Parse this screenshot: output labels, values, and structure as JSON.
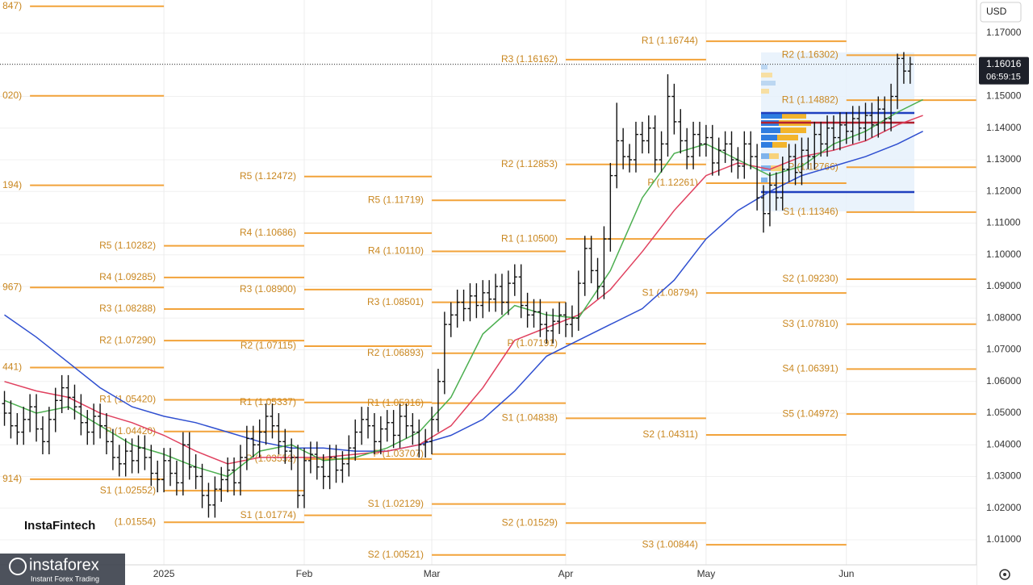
{
  "chart_data": {
    "type": "ohlc",
    "currency": "USD",
    "last_price": 1.16016,
    "countdown": "06:59:15",
    "grid": true,
    "bar_color": "#111111",
    "pivot_color": "#f2a33a",
    "pivot_label_color": "#c98720",
    "price_line_color": "#333333",
    "xlim": [
      -25.7,
      127.4
    ],
    "ylim": [
      1.0021,
      1.18045
    ],
    "xticks": [
      {
        "value": 0,
        "label": "2025"
      },
      {
        "value": 22,
        "label": "Feb"
      },
      {
        "value": 42,
        "label": "Mar"
      },
      {
        "value": 63,
        "label": "Apr"
      },
      {
        "value": 85,
        "label": "May"
      },
      {
        "value": 107,
        "label": "Jun"
      }
    ],
    "yticks": [
      {
        "value": 1.01,
        "label": "1.01000"
      },
      {
        "value": 1.02,
        "label": "1.02000"
      },
      {
        "value": 1.03,
        "label": "1.03000"
      },
      {
        "value": 1.04,
        "label": "1.04000"
      },
      {
        "value": 1.05,
        "label": "1.05000"
      },
      {
        "value": 1.06,
        "label": "1.06000"
      },
      {
        "value": 1.07,
        "label": "1.07000"
      },
      {
        "value": 1.08,
        "label": "1.08000"
      },
      {
        "value": 1.09,
        "label": "1.09000"
      },
      {
        "value": 1.1,
        "label": "1.10000"
      },
      {
        "value": 1.11,
        "label": "1.11000"
      },
      {
        "value": 1.12,
        "label": "1.12000"
      },
      {
        "value": 1.13,
        "label": "1.13000"
      },
      {
        "value": 1.14,
        "label": "1.14000"
      },
      {
        "value": 1.15,
        "label": "1.15000"
      },
      {
        "value": 1.16,
        "label": "1.16000"
      },
      {
        "value": 1.17,
        "label": "1.17000"
      }
    ],
    "x": [
      -25,
      -24,
      -23,
      -22,
      -21,
      -20,
      -19,
      -18,
      -17,
      -16,
      -15,
      -14,
      -13,
      -12,
      -11,
      -10,
      -9,
      -8,
      -7,
      -6,
      -5,
      -4,
      -3,
      -2,
      -1,
      0,
      1,
      2,
      3,
      4,
      5,
      6,
      7,
      8,
      9,
      10,
      11,
      12,
      13,
      14,
      15,
      16,
      17,
      18,
      19,
      20,
      21,
      22,
      23,
      24,
      25,
      26,
      27,
      28,
      29,
      30,
      31,
      32,
      33,
      34,
      35,
      36,
      37,
      38,
      39,
      40,
      41,
      42,
      43,
      44,
      45,
      46,
      47,
      48,
      49,
      50,
      51,
      52,
      53,
      54,
      55,
      56,
      57,
      58,
      59,
      60,
      61,
      62,
      63,
      64,
      65,
      66,
      67,
      68,
      69,
      70,
      71,
      72,
      73,
      74,
      75,
      76,
      77,
      78,
      79,
      80,
      81,
      82,
      83,
      84,
      85,
      86,
      87,
      88,
      89,
      90,
      91,
      92,
      93,
      94,
      95,
      96,
      97,
      98,
      99,
      100,
      101,
      102,
      103,
      104,
      105,
      106,
      107,
      108,
      109,
      110,
      111,
      112,
      113,
      114,
      115,
      116,
      117
    ],
    "open": [
      1.053,
      1.05,
      1.046,
      1.044,
      1.048,
      1.052,
      1.045,
      1.041,
      1.048,
      1.054,
      1.058,
      1.055,
      1.052,
      1.047,
      1.044,
      1.049,
      1.046,
      1.041,
      1.036,
      1.034,
      1.038,
      1.035,
      1.039,
      1.036,
      1.031,
      1.029,
      1.035,
      1.031,
      1.028,
      1.04,
      1.033,
      1.03,
      1.024,
      1.021,
      1.026,
      1.029,
      1.032,
      1.028,
      1.036,
      1.042,
      1.04,
      1.044,
      1.049,
      1.046,
      1.041,
      1.038,
      1.036,
      1.024,
      1.035,
      1.037,
      1.033,
      1.03,
      1.036,
      1.032,
      1.034,
      1.039,
      1.044,
      1.048,
      1.046,
      1.041,
      1.045,
      1.047,
      1.043,
      1.049,
      1.046,
      1.044,
      1.04,
      1.041,
      1.048,
      1.06,
      1.078,
      1.081,
      1.085,
      1.083,
      1.087,
      1.084,
      1.088,
      1.086,
      1.09,
      1.085,
      1.091,
      1.093,
      1.084,
      1.081,
      1.082,
      1.078,
      1.076,
      1.079,
      1.081,
      1.078,
      1.08,
      1.091,
      1.102,
      1.095,
      1.09,
      1.105,
      1.125,
      1.136,
      1.131,
      1.13,
      1.138,
      1.136,
      1.14,
      1.13,
      1.135,
      1.15,
      1.142,
      1.136,
      1.131,
      1.138,
      1.135,
      1.137,
      1.129,
      1.133,
      1.135,
      1.13,
      1.128,
      1.135,
      1.131,
      1.118,
      1.113,
      1.122,
      1.118,
      1.127,
      1.131,
      1.126,
      1.133,
      1.131,
      1.138,
      1.135,
      1.14,
      1.137,
      1.141,
      1.139,
      1.143,
      1.14,
      1.144,
      1.141,
      1.146,
      1.143,
      1.15,
      1.162,
      1.158
    ],
    "high": [
      1.057,
      1.054,
      1.05,
      1.052,
      1.056,
      1.056,
      1.049,
      1.052,
      1.058,
      1.062,
      1.062,
      1.059,
      1.056,
      1.051,
      1.053,
      1.053,
      1.05,
      1.045,
      1.04,
      1.042,
      1.042,
      1.043,
      1.043,
      1.04,
      1.035,
      1.039,
      1.039,
      1.035,
      1.044,
      1.044,
      1.037,
      1.034,
      1.028,
      1.03,
      1.033,
      1.036,
      1.036,
      1.04,
      1.046,
      1.046,
      1.048,
      1.053,
      1.053,
      1.05,
      1.045,
      1.042,
      1.04,
      1.039,
      1.041,
      1.041,
      1.037,
      1.04,
      1.04,
      1.038,
      1.043,
      1.048,
      1.052,
      1.052,
      1.05,
      1.049,
      1.051,
      1.051,
      1.053,
      1.053,
      1.05,
      1.048,
      1.045,
      1.052,
      1.064,
      1.082,
      1.085,
      1.089,
      1.089,
      1.091,
      1.091,
      1.092,
      1.092,
      1.094,
      1.094,
      1.095,
      1.097,
      1.097,
      1.088,
      1.086,
      1.086,
      1.082,
      1.083,
      1.085,
      1.085,
      1.084,
      1.095,
      1.106,
      1.106,
      1.099,
      1.109,
      1.129,
      1.148,
      1.14,
      1.135,
      1.142,
      1.142,
      1.144,
      1.144,
      1.139,
      1.157,
      1.154,
      1.146,
      1.14,
      1.142,
      1.142,
      1.141,
      1.141,
      1.137,
      1.139,
      1.139,
      1.134,
      1.139,
      1.139,
      1.135,
      1.122,
      1.126,
      1.126,
      1.131,
      1.135,
      1.135,
      1.137,
      1.137,
      1.142,
      1.142,
      1.144,
      1.144,
      1.145,
      1.145,
      1.147,
      1.147,
      1.148,
      1.148,
      1.15,
      1.15,
      1.154,
      1.1635,
      1.164,
      1.1625
    ],
    "low": [
      1.046,
      1.042,
      1.04,
      1.04,
      1.044,
      1.041,
      1.037,
      1.037,
      1.044,
      1.05,
      1.051,
      1.048,
      1.043,
      1.04,
      1.04,
      1.042,
      1.037,
      1.032,
      1.03,
      1.03,
      1.031,
      1.031,
      1.032,
      1.027,
      1.025,
      1.025,
      1.027,
      1.024,
      1.024,
      1.029,
      1.026,
      1.02,
      1.017,
      1.017,
      1.022,
      1.025,
      1.024,
      1.024,
      1.032,
      1.036,
      1.036,
      1.04,
      1.042,
      1.037,
      1.034,
      1.032,
      1.02,
      1.02,
      1.031,
      1.029,
      1.026,
      1.026,
      1.028,
      1.028,
      1.03,
      1.035,
      1.04,
      1.042,
      1.037,
      1.037,
      1.041,
      1.039,
      1.039,
      1.042,
      1.04,
      1.036,
      1.036,
      1.037,
      1.044,
      1.056,
      1.074,
      1.077,
      1.079,
      1.079,
      1.08,
      1.08,
      1.082,
      1.082,
      1.081,
      1.081,
      1.087,
      1.08,
      1.077,
      1.077,
      1.074,
      1.072,
      1.072,
      1.075,
      1.074,
      1.074,
      1.076,
      1.087,
      1.091,
      1.086,
      1.086,
      1.101,
      1.121,
      1.127,
      1.126,
      1.126,
      1.132,
      1.132,
      1.126,
      1.126,
      1.131,
      1.138,
      1.132,
      1.127,
      1.127,
      1.131,
      1.131,
      1.125,
      1.125,
      1.129,
      1.126,
      1.124,
      1.124,
      1.127,
      1.114,
      1.107,
      1.109,
      1.114,
      1.114,
      1.123,
      1.122,
      1.122,
      1.127,
      1.127,
      1.131,
      1.131,
      1.133,
      1.133,
      1.135,
      1.135,
      1.136,
      1.136,
      1.137,
      1.137,
      1.139,
      1.139,
      1.146,
      1.154,
      1.154
    ],
    "close": [
      1.05,
      1.046,
      1.044,
      1.048,
      1.052,
      1.045,
      1.041,
      1.048,
      1.054,
      1.058,
      1.055,
      1.052,
      1.047,
      1.044,
      1.049,
      1.046,
      1.041,
      1.036,
      1.034,
      1.038,
      1.035,
      1.039,
      1.036,
      1.031,
      1.029,
      1.035,
      1.031,
      1.028,
      1.04,
      1.033,
      1.03,
      1.024,
      1.021,
      1.026,
      1.029,
      1.032,
      1.028,
      1.036,
      1.042,
      1.04,
      1.044,
      1.049,
      1.046,
      1.041,
      1.038,
      1.036,
      1.024,
      1.035,
      1.037,
      1.033,
      1.03,
      1.036,
      1.032,
      1.034,
      1.039,
      1.044,
      1.048,
      1.046,
      1.041,
      1.045,
      1.047,
      1.043,
      1.049,
      1.046,
      1.044,
      1.04,
      1.041,
      1.048,
      1.06,
      1.078,
      1.081,
      1.085,
      1.083,
      1.087,
      1.084,
      1.088,
      1.086,
      1.09,
      1.085,
      1.091,
      1.093,
      1.084,
      1.081,
      1.082,
      1.078,
      1.076,
      1.079,
      1.081,
      1.078,
      1.08,
      1.091,
      1.102,
      1.095,
      1.09,
      1.105,
      1.125,
      1.136,
      1.131,
      1.13,
      1.138,
      1.136,
      1.14,
      1.13,
      1.135,
      1.15,
      1.142,
      1.136,
      1.131,
      1.138,
      1.135,
      1.137,
      1.129,
      1.133,
      1.135,
      1.13,
      1.128,
      1.135,
      1.131,
      1.118,
      1.113,
      1.122,
      1.118,
      1.127,
      1.131,
      1.126,
      1.133,
      1.131,
      1.138,
      1.135,
      1.14,
      1.137,
      1.141,
      1.139,
      1.143,
      1.14,
      1.144,
      1.141,
      1.146,
      1.143,
      1.15,
      1.162,
      1.158,
      1.1602
    ],
    "lines": [
      {
        "color": "#2f4fd0",
        "x": [
          -25,
          -20,
          -15,
          -10,
          -5,
          0,
          5,
          10,
          15,
          20,
          25,
          30,
          35,
          40,
          45,
          50,
          55,
          60,
          65,
          70,
          75,
          80,
          85,
          90,
          95,
          100,
          105,
          110,
          115,
          119
        ],
        "values": [
          1.081,
          1.074,
          1.066,
          1.058,
          1.052,
          1.049,
          1.047,
          1.044,
          1.041,
          1.039,
          1.039,
          1.038,
          1.038,
          1.04,
          1.043,
          1.048,
          1.057,
          1.068,
          1.073,
          1.078,
          1.083,
          1.092,
          1.105,
          1.114,
          1.12,
          1.125,
          1.128,
          1.131,
          1.135,
          1.139
        ]
      },
      {
        "color": "#e0405e",
        "x": [
          -25,
          -20,
          -15,
          -10,
          -5,
          0,
          5,
          10,
          15,
          20,
          25,
          30,
          35,
          40,
          45,
          50,
          55,
          60,
          65,
          70,
          75,
          80,
          85,
          90,
          95,
          100,
          105,
          110,
          115,
          119
        ],
        "values": [
          1.06,
          1.057,
          1.055,
          1.05,
          1.047,
          1.043,
          1.038,
          1.034,
          1.036,
          1.036,
          1.036,
          1.037,
          1.038,
          1.04,
          1.046,
          1.058,
          1.073,
          1.077,
          1.081,
          1.089,
          1.101,
          1.114,
          1.125,
          1.129,
          1.127,
          1.131,
          1.133,
          1.136,
          1.141,
          1.144
        ]
      },
      {
        "color": "#4caf50",
        "x": [
          -25,
          -20,
          -15,
          -10,
          -5,
          0,
          5,
          10,
          15,
          20,
          25,
          30,
          35,
          40,
          45,
          50,
          55,
          60,
          65,
          70,
          75,
          80,
          85,
          90,
          95,
          100,
          105,
          110,
          115,
          119
        ],
        "values": [
          1.054,
          1.05,
          1.052,
          1.046,
          1.04,
          1.037,
          1.033,
          1.03,
          1.038,
          1.04,
          1.035,
          1.036,
          1.039,
          1.044,
          1.055,
          1.075,
          1.084,
          1.081,
          1.08,
          1.095,
          1.118,
          1.132,
          1.135,
          1.13,
          1.125,
          1.128,
          1.135,
          1.139,
          1.145,
          1.149
        ]
      }
    ],
    "pivot_periods": [
      {
        "start": -21,
        "end": 0,
        "levels": [
          {
            "label": "847)",
            "value": 1.17847
          },
          {
            "label": "020)",
            "value": 1.1502
          },
          {
            "label": "194)",
            "value": 1.12194
          },
          {
            "label": "967)",
            "value": 1.08967
          },
          {
            "label": "441)",
            "value": 1.06441
          },
          {
            "label": "914)",
            "value": 1.02914
          }
        ]
      },
      {
        "start": 0,
        "end": 22,
        "levels": [
          {
            "label": "R5 (1.10282)",
            "value": 1.10282
          },
          {
            "label": "R4 (1.09285)",
            "value": 1.09285
          },
          {
            "label": "R3 (1.08288)",
            "value": 1.08288
          },
          {
            "label": "R2 (1.07290)",
            "value": 1.0729
          },
          {
            "label": "R1 (1.05420)",
            "value": 1.0542
          },
          {
            "label": "P (1.04420)",
            "value": 1.0442
          },
          {
            "label": "S1 (1.02552)",
            "value": 1.02552
          },
          {
            "label": "(1.01554)",
            "value": 1.01554
          }
        ]
      },
      {
        "start": 22,
        "end": 42,
        "levels": [
          {
            "label": "R5 (1.12472)",
            "value": 1.12472
          },
          {
            "label": "R4 (1.10686)",
            "value": 1.10686
          },
          {
            "label": "R3 (1.08900)",
            "value": 1.089
          },
          {
            "label": "R2 (1.07115)",
            "value": 1.07115
          },
          {
            "label": "R1 (1.05337)",
            "value": 1.05337
          },
          {
            "label": "P (1.03552)",
            "value": 1.03552
          },
          {
            "label": "S1 (1.01774)",
            "value": 1.01774
          }
        ]
      },
      {
        "start": 42,
        "end": 63,
        "levels": [
          {
            "label": "R5 (1.11719)",
            "value": 1.11719
          },
          {
            "label": "R4 (1.10110)",
            "value": 1.1011
          },
          {
            "label": "R3 (1.08501)",
            "value": 1.08501
          },
          {
            "label": "R2 (1.06893)",
            "value": 1.06893
          },
          {
            "label": "R1 (1.05316)",
            "value": 1.05316
          },
          {
            "label": "P (1.03707)",
            "value": 1.03707
          },
          {
            "label": "S1 (1.02129)",
            "value": 1.02129
          },
          {
            "label": "S2 (1.00521)",
            "value": 1.00521
          }
        ]
      },
      {
        "start": 63,
        "end": 85,
        "levels": [
          {
            "label": "R3 (1.16162)",
            "value": 1.16162
          },
          {
            "label": "R2 (1.12853)",
            "value": 1.12853
          },
          {
            "label": "R1 (1.10500)",
            "value": 1.105
          },
          {
            "label": "P (1.07191)",
            "value": 1.07191
          },
          {
            "label": "S1 (1.04838)",
            "value": 1.04838
          },
          {
            "label": "S2 (1.01529)",
            "value": 1.01529
          }
        ]
      },
      {
        "start": 85,
        "end": 107,
        "levels": [
          {
            "label": "R1 (1.16744)",
            "value": 1.16744
          },
          {
            "label": "P (1.12261)",
            "value": 1.12261
          },
          {
            "label": "S1 (1.08794)",
            "value": 1.08794
          },
          {
            "label": "S2 (1.04311)",
            "value": 1.04311
          },
          {
            "label": "S3 (1.00844)",
            "value": 1.00844
          }
        ]
      },
      {
        "start": 107,
        "end": 127.4,
        "levels": [
          {
            "label": "R2 (1.16302)",
            "value": 1.16302
          },
          {
            "label": "R1 (1.14882)",
            "value": 1.14882
          },
          {
            "label": "P (1.12766)",
            "value": 1.12766
          },
          {
            "label": "S1 (1.11346)",
            "value": 1.11346
          },
          {
            "label": "S2 (1.09230)",
            "value": 1.0923
          },
          {
            "label": "S3 (1.07810)",
            "value": 1.0781
          },
          {
            "label": "S4 (1.06391)",
            "value": 1.06391
          },
          {
            "label": "S5 (1.04972)",
            "value": 1.04972
          }
        ]
      }
    ]
  },
  "branding": {
    "instafintech": "InstaFintech",
    "instaforex": "instaforex",
    "tagline": "Instant Forex Trading"
  }
}
